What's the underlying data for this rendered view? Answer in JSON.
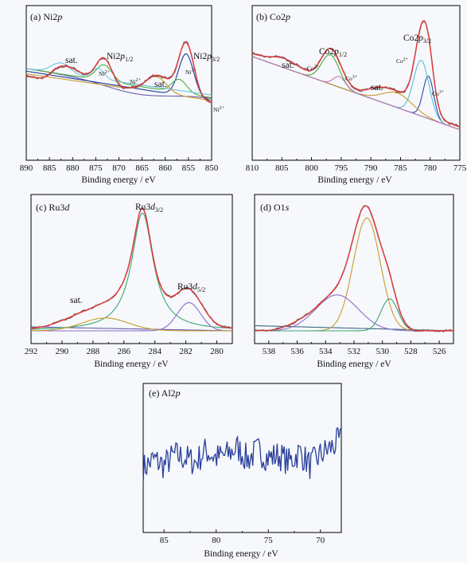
{
  "colors": {
    "experimental": "#7a5c5c",
    "envelope": "#e03c3c",
    "background": "#6a5fb0",
    "ni2_comp": "#1f3a9e",
    "ni3_comp": "#4bab3b",
    "sat_comp": "#6cc3d8",
    "co2_comp": "#5bbfd6",
    "co3_comp": "#2a4aa8",
    "ru_main": "#3aa872",
    "ru_side": "#8d6cc8",
    "ru_sat": "#c99b2e",
    "o_lattice": "#c99b2e",
    "o_low": "#8d6cc8",
    "o_high": "#3aa872",
    "al_line": "#2a3f9a"
  },
  "panels": {
    "a": {
      "title_prefix": "(a) Ni2",
      "title_italic": "p",
      "xlabel": "Binding energy / eV",
      "labels": {
        "sat": "sat.",
        "sat2": "sat.",
        "ni2p12": "Ni2p1/2",
        "ni2p32": "Ni2p3/2",
        "ni2plus_a": "Ni²⁺",
        "ni3plus": "Ni³⁺",
        "ni2plus_b": "Ni²⁺",
        "ni2plus_c": "Ni²⁺"
      }
    },
    "b": {
      "title_prefix": "(b) Co2",
      "title_italic": "p",
      "xlabel": "Binding energy / eV",
      "labels": {
        "sat": "sat.",
        "sat2": "sat.",
        "co2p12": "Co2p1/2",
        "co2p32": "Co2p3/2",
        "co2plus_a": "Co²⁺",
        "co3plus_a": "Co³⁺",
        "co2plus_b": "Co²⁺",
        "co3plus_b": "Co³⁺"
      }
    },
    "c": {
      "title_prefix": "(c) Ru3",
      "title_italic": "d",
      "xlabel": "Binding energy / eV",
      "labels": {
        "sat": "sat.",
        "ru3d32": "Ru3d3/2",
        "ru3d52": "Ru3d5/2"
      }
    },
    "d": {
      "title_prefix": "(d) O1",
      "title_italic": "s",
      "xlabel": "Binding energy / eV"
    },
    "e": {
      "title_prefix": "(e) Al2",
      "title_italic": "p",
      "xlabel": "Binding energy / eV"
    }
  },
  "chart_data": [
    {
      "type": "line",
      "title": "(a) Ni2p",
      "xlabel": "Binding energy / eV",
      "ylabel": "",
      "xlim": [
        890,
        850
      ],
      "xticks": [
        890,
        885,
        880,
        875,
        870,
        865,
        860,
        855,
        850
      ],
      "series": [
        {
          "name": "measured",
          "x": [
            890,
            886,
            883,
            882,
            880,
            878,
            876,
            874,
            873,
            872,
            870,
            868,
            866,
            864,
            862,
            860,
            858,
            856,
            855,
            854,
            852,
            850
          ],
          "y": [
            0.62,
            0.63,
            0.67,
            0.66,
            0.68,
            0.6,
            0.62,
            0.78,
            0.74,
            0.6,
            0.45,
            0.37,
            0.39,
            0.47,
            0.56,
            0.44,
            0.41,
            0.86,
            0.94,
            0.62,
            0.34,
            0.3
          ]
        },
        {
          "name": "envelope",
          "x": [
            890,
            886,
            883,
            882,
            880,
            878,
            876,
            874,
            873,
            872,
            870,
            868,
            866,
            864,
            862,
            860,
            858,
            856,
            855,
            854,
            852,
            850
          ],
          "y": [
            0.61,
            0.62,
            0.66,
            0.65,
            0.67,
            0.59,
            0.61,
            0.77,
            0.73,
            0.59,
            0.44,
            0.36,
            0.38,
            0.46,
            0.55,
            0.43,
            0.4,
            0.85,
            0.93,
            0.61,
            0.33,
            0.29
          ]
        }
      ]
    },
    {
      "type": "line",
      "title": "(b) Co2p",
      "xlabel": "Binding energy / eV",
      "ylabel": "",
      "xlim": [
        810,
        775
      ],
      "xticks": [
        810,
        805,
        800,
        795,
        790,
        785,
        780,
        775
      ],
      "series": [
        {
          "name": "measured",
          "x": [
            810,
            806,
            804,
            802,
            800,
            797,
            796,
            795,
            793,
            790,
            788,
            786,
            784,
            782,
            781,
            780,
            779,
            778,
            777,
            775
          ],
          "y": [
            0.72,
            0.75,
            0.75,
            0.7,
            0.69,
            0.86,
            0.84,
            0.66,
            0.55,
            0.5,
            0.52,
            0.47,
            0.58,
            0.9,
            1.0,
            0.82,
            0.45,
            0.25,
            0.18,
            0.15
          ]
        },
        {
          "name": "envelope",
          "x": [
            810,
            806,
            804,
            802,
            800,
            797,
            796,
            795,
            793,
            790,
            788,
            786,
            784,
            782,
            781,
            780,
            779,
            778,
            777,
            775
          ],
          "y": [
            0.71,
            0.74,
            0.74,
            0.69,
            0.68,
            0.85,
            0.83,
            0.65,
            0.54,
            0.49,
            0.51,
            0.46,
            0.57,
            0.89,
            0.99,
            0.81,
            0.44,
            0.24,
            0.17,
            0.14
          ]
        }
      ]
    },
    {
      "type": "line",
      "title": "(c) Ru3d",
      "xlabel": "Binding energy / eV",
      "ylabel": "",
      "xlim": [
        292,
        279
      ],
      "xticks": [
        292,
        290,
        288,
        286,
        284,
        282,
        280
      ],
      "series": [
        {
          "name": "measured",
          "x": [
            292,
            290,
            289,
            288,
            287,
            286,
            285.2,
            284.8,
            284.4,
            283.5,
            283,
            282.5,
            282,
            281.5,
            281,
            280,
            279
          ],
          "y": [
            0.03,
            0.08,
            0.13,
            0.18,
            0.24,
            0.45,
            0.95,
            1.0,
            0.93,
            0.4,
            0.25,
            0.3,
            0.35,
            0.33,
            0.26,
            0.06,
            0.03
          ]
        }
      ]
    },
    {
      "type": "line",
      "title": "(d) O1s",
      "xlabel": "Binding energy / eV",
      "ylabel": "",
      "xlim": [
        539,
        525
      ],
      "xticks": [
        538,
        536,
        534,
        532,
        530,
        528,
        526
      ],
      "series": [
        {
          "name": "measured",
          "x": [
            539,
            537,
            536,
            535,
            534,
            533,
            532,
            531.3,
            531,
            530.5,
            530,
            529.5,
            529,
            528,
            527,
            526,
            525
          ],
          "y": [
            0.03,
            0.06,
            0.12,
            0.2,
            0.3,
            0.42,
            0.65,
            0.97,
            1.0,
            0.9,
            0.65,
            0.5,
            0.35,
            0.13,
            0.05,
            0.02,
            0.01
          ]
        }
      ]
    },
    {
      "type": "line",
      "title": "(e) Al2p",
      "xlabel": "Binding energy / eV",
      "ylabel": "",
      "xlim": [
        87,
        68
      ],
      "xticks": [
        85,
        80,
        75,
        70
      ],
      "series": [
        {
          "name": "measured",
          "x": [
            87,
            86,
            85,
            84,
            83,
            82,
            81,
            80,
            79,
            78,
            77,
            76,
            75,
            74,
            73,
            72,
            71,
            70,
            69,
            68
          ],
          "y": [
            0.43,
            0.49,
            0.45,
            0.52,
            0.5,
            0.47,
            0.55,
            0.5,
            0.52,
            0.57,
            0.49,
            0.55,
            0.5,
            0.52,
            0.47,
            0.54,
            0.45,
            0.52,
            0.57,
            0.62
          ]
        }
      ]
    }
  ]
}
